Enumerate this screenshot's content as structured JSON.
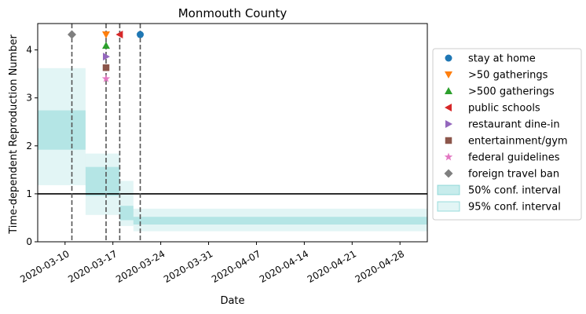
{
  "chart_data": {
    "type": "step",
    "title": "Monmouth County",
    "xlabel": "Date",
    "ylabel": "Time-dependent Reproduction Number",
    "x_tick_labels": [
      "2020-03-10",
      "2020-03-17",
      "2020-03-24",
      "2020-03-31",
      "2020-04-07",
      "2020-04-14",
      "2020-04-21",
      "2020-04-28"
    ],
    "y_ticks": [
      0,
      1,
      2,
      3,
      4
    ],
    "xlim": [
      "2020-03-06",
      "2020-05-02"
    ],
    "ylim": [
      0,
      4.55
    ],
    "reference_line": 1,
    "segments": [
      {
        "start": "2020-03-06",
        "end": "2020-03-13",
        "ci50": [
          1.92,
          2.74
        ],
        "ci95": [
          1.18,
          3.62
        ]
      },
      {
        "start": "2020-03-13",
        "end": "2020-03-18",
        "ci50": [
          0.96,
          1.56
        ],
        "ci95": [
          0.56,
          1.84
        ]
      },
      {
        "start": "2020-03-18",
        "end": "2020-03-20",
        "ci50": [
          0.45,
          0.75
        ],
        "ci95": [
          0.33,
          1.27
        ]
      },
      {
        "start": "2020-03-20",
        "end": "2020-05-02",
        "ci50": [
          0.36,
          0.52
        ],
        "ci95": [
          0.22,
          0.69
        ]
      }
    ],
    "interventions": [
      {
        "label": "stay at home",
        "date": "2020-03-21",
        "y": 4.32,
        "marker": "circle",
        "color": "#1f77b4"
      },
      {
        "label": ">50 gatherings",
        "date": "2020-03-16",
        "y": 4.32,
        "marker": "triangle-down",
        "color": "#ff7f0e"
      },
      {
        "label": ">500 gatherings",
        "date": "2020-03-16",
        "y": 4.09,
        "marker": "triangle-up",
        "color": "#2ca02c"
      },
      {
        "label": "public schools",
        "date": "2020-03-18",
        "y": 4.32,
        "marker": "triangle-left",
        "color": "#d62728"
      },
      {
        "label": "restaurant dine-in",
        "date": "2020-03-16",
        "y": 3.86,
        "marker": "triangle-right",
        "color": "#9467bd"
      },
      {
        "label": "entertainment/gym",
        "date": "2020-03-16",
        "y": 3.63,
        "marker": "square",
        "color": "#8c564b"
      },
      {
        "label": "federal guidelines",
        "date": "2020-03-16",
        "y": 3.4,
        "marker": "star",
        "color": "#e377c2"
      },
      {
        "label": "foreign travel ban",
        "date": "2020-03-11",
        "y": 4.32,
        "marker": "diamond",
        "color": "#7f7f7f"
      }
    ],
    "ci_legend": [
      {
        "label": "50% conf. interval",
        "color": "#5fc8c8",
        "opacity": 0.35
      },
      {
        "label": "95% conf. interval",
        "color": "#5fc8c8",
        "opacity": 0.18
      }
    ],
    "legend_position": "right",
    "grid": false
  }
}
